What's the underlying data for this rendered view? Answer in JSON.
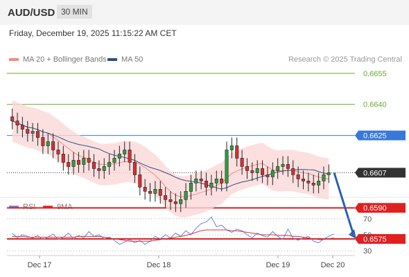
{
  "header": {
    "symbol": "AUD/USD",
    "timeframe": "30 MIN",
    "datetime": "Friday, December 19, 2025 11:15:22 AM CET",
    "credit": "Research © 2025 Trading Central"
  },
  "legend": {
    "main": [
      {
        "label": "MA 20 + Bollinger Bands",
        "color": "#f28b82"
      },
      {
        "label": "MA 50",
        "color": "#2b4f87"
      }
    ],
    "sub": [
      {
        "label": "RSI",
        "color": "#5b87e6"
      },
      {
        "label": "9MA",
        "color": "#e03030"
      }
    ]
  },
  "chart_data": [
    {
      "type": "candlestick",
      "ylim": [
        0.657,
        0.6665
      ],
      "x": [
        "Dec 17",
        "Dec 18",
        "Dec 19",
        "Dec 20"
      ],
      "levels": [
        {
          "value": "0.6655",
          "role": "target",
          "color": "#6aaa2e"
        },
        {
          "value": "0.6640",
          "role": "target",
          "color": "#6aaa2e"
        },
        {
          "value": "0.6625",
          "role": "pivot",
          "color": "#3a78d8"
        },
        {
          "value": "0.6607",
          "role": "last",
          "color": "#333333"
        },
        {
          "value": "0.6590",
          "role": "support",
          "color": "#e02020"
        },
        {
          "value": "0.6575",
          "role": "support",
          "color": "#e02020"
        }
      ],
      "projection": {
        "from": 0.6607,
        "to": 0.6575,
        "color": "#2b5fb0"
      },
      "close_series": [
        0.6632,
        0.663,
        0.6628,
        0.6626,
        0.6627,
        0.6624,
        0.662,
        0.6622,
        0.6618,
        0.6616,
        0.6612,
        0.661,
        0.6613,
        0.6611,
        0.6614,
        0.6612,
        0.6609,
        0.6608,
        0.661,
        0.6612,
        0.6614,
        0.6616,
        0.6618,
        0.6612,
        0.6606,
        0.66,
        0.6598,
        0.6597,
        0.6599,
        0.6596,
        0.6594,
        0.6593,
        0.6592,
        0.6594,
        0.6598,
        0.6602,
        0.6604,
        0.6603,
        0.66,
        0.6602,
        0.6604,
        0.6602,
        0.6618,
        0.662,
        0.6614,
        0.661,
        0.6608,
        0.6607,
        0.6609,
        0.6606,
        0.6605,
        0.6608,
        0.661,
        0.6611,
        0.6609,
        0.6606,
        0.6604,
        0.6603,
        0.6602,
        0.6601,
        0.6603,
        0.6606,
        0.6607
      ]
    },
    {
      "type": "line",
      "title": "RSI",
      "ylim": [
        25,
        75
      ],
      "ticks": [
        "70",
        "50",
        "30"
      ],
      "series": [
        {
          "name": "RSI",
          "color": "#5b87e6",
          "values": [
            52,
            46,
            50,
            48,
            46,
            49,
            44,
            47,
            51,
            44,
            47,
            52,
            45,
            49,
            46,
            54,
            48,
            50,
            45,
            47,
            43,
            38,
            41,
            44,
            40,
            43,
            38,
            42,
            48,
            45,
            50,
            46,
            52,
            48,
            55,
            50,
            58,
            64,
            66,
            72,
            60,
            62,
            56,
            53,
            57,
            55,
            50,
            46,
            52,
            49,
            47,
            54,
            48,
            44,
            57,
            46,
            43,
            46,
            48,
            42,
            40,
            45,
            48,
            51
          ]
        },
        {
          "name": "9MA",
          "color": "#e03030",
          "values": [
            48,
            48,
            48,
            47,
            47,
            47,
            47,
            47,
            47,
            47,
            47,
            47,
            47,
            48,
            48,
            48,
            48,
            48,
            47,
            46,
            45,
            44,
            43,
            42,
            42,
            42,
            42,
            42,
            43,
            44,
            45,
            46,
            47,
            48,
            49,
            51,
            53,
            55,
            56,
            56,
            56,
            56,
            56,
            55,
            55,
            54,
            53,
            52,
            51,
            50,
            50,
            50,
            49,
            49,
            49,
            48,
            48,
            47,
            46,
            45,
            44,
            44,
            45,
            46
          ]
        }
      ]
    }
  ]
}
